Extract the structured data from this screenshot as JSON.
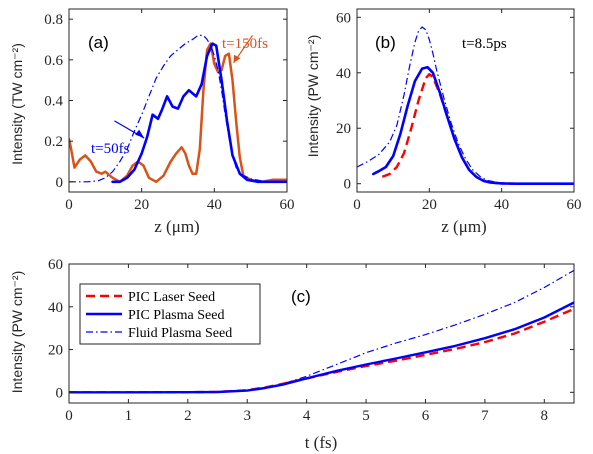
{
  "colors": {
    "orange": "#d95319",
    "blue": "#0000ff",
    "red": "#ff0000",
    "axis": "#262626"
  },
  "chart_data": [
    {
      "type": "line",
      "panel": "(a)",
      "xlabel": "z (μm)",
      "ylabel": "Intensity (TW cm⁻²)",
      "xlim": [
        0,
        60
      ],
      "ylim": [
        -0.05,
        0.85
      ],
      "xticks": [
        "0",
        "20",
        "40",
        "60"
      ],
      "yticks": [
        "0",
        "0.2",
        "0.4",
        "0.6",
        "0.8"
      ],
      "annotations": [
        "t=50fs",
        "t=150fs"
      ],
      "series": [
        {
          "name": "t=150fs",
          "color": "#d95319",
          "style": "solid",
          "width": 2.5,
          "x": [
            0,
            0.5,
            1.5,
            3,
            4.5,
            6,
            7.5,
            9,
            10,
            12,
            14,
            16,
            17.5,
            19,
            20.5,
            22,
            24,
            26,
            28,
            29.5,
            31,
            32,
            33,
            34,
            35,
            36,
            37,
            38,
            39,
            40,
            41,
            42,
            43,
            44,
            45,
            46,
            47,
            48,
            50,
            53,
            56,
            60
          ],
          "y": [
            0.21,
            0.17,
            0.07,
            0.11,
            0.13,
            0.1,
            0.05,
            0.04,
            0.05,
            0.02,
            0.0,
            0.03,
            0.08,
            0.1,
            0.08,
            0.02,
            0.0,
            0.03,
            0.1,
            0.14,
            0.17,
            0.14,
            0.08,
            0.04,
            0.04,
            0.16,
            0.45,
            0.65,
            0.68,
            0.58,
            0.54,
            0.55,
            0.62,
            0.63,
            0.5,
            0.3,
            0.12,
            0.03,
            0.01,
            0.0,
            0.01,
            0.01
          ]
        },
        {
          "name": "t=50fs",
          "color": "#0000ff",
          "style": "solid",
          "width": 2.6,
          "x": [
            12,
            14,
            16,
            18,
            20,
            21.5,
            23,
            24.5,
            25.5,
            27,
            28.5,
            30,
            31.5,
            33,
            35,
            36.5,
            38,
            39.5,
            40.5,
            42,
            43.5,
            45,
            47,
            49,
            52,
            56,
            60
          ],
          "y": [
            0.0,
            0.0,
            0.02,
            0.06,
            0.14,
            0.22,
            0.33,
            0.31,
            0.35,
            0.42,
            0.37,
            0.36,
            0.42,
            0.45,
            0.42,
            0.48,
            0.62,
            0.68,
            0.67,
            0.5,
            0.3,
            0.13,
            0.04,
            0.01,
            0.0,
            0.0,
            0.0
          ]
        },
        {
          "name": "fluid",
          "color": "#0000ff",
          "style": "dashdot",
          "width": 1.2,
          "x": [
            0,
            5,
            8,
            10,
            12,
            14,
            16,
            18,
            20,
            22,
            24,
            26,
            28,
            30,
            32,
            34,
            35.5,
            37,
            38,
            39,
            40,
            41,
            42,
            43,
            44,
            45,
            46,
            48,
            50,
            53,
            56,
            60
          ],
          "y": [
            0.0,
            0.0,
            0.005,
            0.02,
            0.05,
            0.1,
            0.16,
            0.25,
            0.33,
            0.42,
            0.51,
            0.57,
            0.62,
            0.65,
            0.68,
            0.7,
            0.72,
            0.72,
            0.7,
            0.67,
            0.62,
            0.55,
            0.45,
            0.33,
            0.22,
            0.13,
            0.07,
            0.03,
            0.015,
            0.005,
            0.0,
            0.0
          ]
        }
      ]
    },
    {
      "type": "line",
      "panel": "(b)",
      "xlabel": "z (μm)",
      "ylabel": "Intensity (PW cm⁻²)",
      "xlim": [
        0,
        60
      ],
      "ylim": [
        -3,
        63
      ],
      "xticks": [
        "0",
        "20",
        "40",
        "60"
      ],
      "yticks": [
        "0",
        "20",
        "40",
        "60"
      ],
      "annotations": [
        "t=8.5ps"
      ],
      "series": [
        {
          "name": "PIC Laser Seed",
          "color": "#ff0000",
          "style": "dashed",
          "width": 2.4,
          "x": [
            7,
            9,
            11,
            13,
            15,
            17,
            19,
            20,
            21,
            23,
            25,
            27,
            29,
            31,
            33,
            35,
            37,
            40,
            44,
            48,
            52,
            60
          ],
          "y": [
            2.5,
            3.5,
            6,
            11,
            20,
            30,
            38,
            39.5,
            38.5,
            32,
            24,
            16,
            9.5,
            5,
            2.4,
            1.0,
            0.4,
            0.1,
            0,
            0,
            0,
            0
          ]
        },
        {
          "name": "PIC Plasma Seed",
          "color": "#0000ff",
          "style": "solid",
          "width": 2.6,
          "x": [
            4.5,
            6,
            8,
            10,
            12,
            14,
            16,
            18,
            19.5,
            21,
            23,
            25,
            27,
            29,
            31,
            33,
            35,
            37,
            40,
            44,
            48,
            52,
            60
          ],
          "y": [
            3.5,
            4.5,
            6,
            10,
            18,
            28,
            37,
            41.5,
            42,
            40,
            32.5,
            24,
            16,
            9.5,
            5,
            2.4,
            1.0,
            0.4,
            0.1,
            0,
            0,
            0,
            0
          ]
        },
        {
          "name": "Fluid Plasma Seed",
          "color": "#0000ff",
          "style": "dashdot",
          "width": 1.2,
          "x": [
            0,
            3,
            6,
            9,
            11,
            13,
            14.5,
            16,
            17,
            18,
            19,
            20,
            21,
            22,
            24,
            26,
            28,
            30,
            32,
            34,
            36,
            39,
            42,
            46,
            50,
            55,
            60
          ],
          "y": [
            6,
            8,
            10.5,
            15,
            21,
            32,
            42,
            51,
            55,
            56.5,
            55.5,
            52,
            47,
            41,
            31,
            22,
            14.5,
            9,
            5,
            2.6,
            1.2,
            0.4,
            0.1,
            0,
            0,
            0,
            0
          ]
        }
      ]
    },
    {
      "type": "line",
      "panel": "(c)",
      "xlabel": "t (fs)",
      "ylabel": "Intensity (PW cm⁻²)",
      "xlim": [
        0,
        8.5
      ],
      "ylim": [
        -5,
        60
      ],
      "xticks": [
        "0",
        "1",
        "2",
        "3",
        "4",
        "5",
        "6",
        "7",
        "8"
      ],
      "yticks": [
        "0",
        "20",
        "40",
        "60"
      ],
      "legend": {
        "position": "top-left"
      },
      "series": [
        {
          "name": "PIC Laser Seed",
          "color": "#ff0000",
          "style": "dashed",
          "width": 2.4,
          "x": [
            0,
            1,
            2,
            2.5,
            3,
            3.3,
            3.6,
            4,
            4.5,
            5,
            5.5,
            6,
            6.5,
            7,
            7.5,
            8,
            8.5
          ],
          "y": [
            0,
            0,
            0.05,
            0.2,
            1.0,
            2.3,
            4.0,
            6.5,
            9.5,
            12.3,
            14.8,
            17.5,
            20.3,
            23.5,
            27.5,
            33,
            39
          ]
        },
        {
          "name": "PIC Plasma Seed",
          "color": "#0000ff",
          "style": "solid",
          "width": 2.4,
          "x": [
            0,
            1,
            2,
            2.5,
            3,
            3.3,
            3.6,
            4,
            4.5,
            5,
            5.5,
            6,
            6.5,
            7,
            7.5,
            8,
            8.5
          ],
          "y": [
            0,
            0,
            0.05,
            0.15,
            0.8,
            2.0,
            3.6,
            6.5,
            10,
            13,
            15.8,
            18.7,
            21.7,
            25.3,
            29.5,
            35,
            42
          ]
        },
        {
          "name": "Fluid Plasma Seed",
          "color": "#0000ff",
          "style": "dashdot",
          "width": 1.2,
          "x": [
            0,
            1,
            2,
            2.5,
            3,
            3.3,
            3.6,
            4,
            4.5,
            5,
            5.5,
            6,
            6.5,
            7,
            7.5,
            8,
            8.5
          ],
          "y": [
            0,
            0,
            0.05,
            0.2,
            1.0,
            2.2,
            4.0,
            7.5,
            13,
            18.5,
            23,
            27,
            31.5,
            36.5,
            42,
            49,
            57
          ]
        }
      ]
    }
  ]
}
